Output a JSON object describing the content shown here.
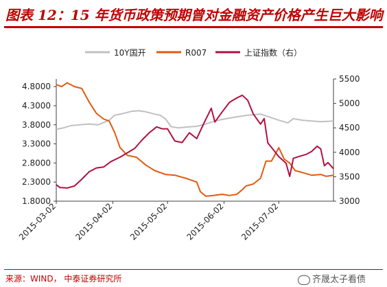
{
  "title": "图表 12：15 年货币政策预期曾对金融资产价格产生巨大影响",
  "source": "来源：WIND， 中泰证券研究所",
  "watermark": "齐晟太子看债",
  "colors": {
    "title": "#c00000",
    "s10y": "#c0c0c0",
    "r007": "#e05a10",
    "sh": "#b01040",
    "axis": "#404040"
  },
  "chart_data": {
    "type": "line",
    "title": "",
    "xlabel": "",
    "ylabel": "",
    "x_ticks": [
      "2015-03-02",
      "2015-04-02",
      "2015-05-02",
      "2015-06-02",
      "2015-07-02"
    ],
    "x_range": [
      "2015-03-02",
      "2015-08-01"
    ],
    "y_left": {
      "range": [
        1.8,
        5.0
      ],
      "ticks": [
        "1.8000",
        "2.3000",
        "2.8000",
        "3.3000",
        "3.8000",
        "4.3000",
        "4.8000"
      ]
    },
    "y_right": {
      "range": [
        3000,
        5500
      ],
      "ticks": [
        "3000",
        "3500",
        "4000",
        "4500",
        "5000",
        "5500"
      ]
    },
    "legend": "top",
    "series": [
      {
        "name": "10Y国开",
        "axis": "left",
        "points": [
          [
            "2015-03-02",
            3.68
          ],
          [
            "2015-03-06",
            3.72
          ],
          [
            "2015-03-10",
            3.78
          ],
          [
            "2015-03-15",
            3.8
          ],
          [
            "2015-03-20",
            3.82
          ],
          [
            "2015-03-25",
            3.8
          ],
          [
            "2015-03-31",
            3.92
          ],
          [
            "2015-04-03",
            4.05
          ],
          [
            "2015-04-08",
            4.1
          ],
          [
            "2015-04-12",
            4.15
          ],
          [
            "2015-04-16",
            4.17
          ],
          [
            "2015-04-20",
            4.14
          ],
          [
            "2015-04-25",
            4.08
          ],
          [
            "2015-04-28",
            4.05
          ],
          [
            "2015-05-01",
            3.95
          ],
          [
            "2015-05-04",
            3.75
          ],
          [
            "2015-05-08",
            3.72
          ],
          [
            "2015-05-12",
            3.74
          ],
          [
            "2015-05-18",
            3.76
          ],
          [
            "2015-05-23",
            3.82
          ],
          [
            "2015-05-28",
            3.9
          ],
          [
            "2015-06-02",
            3.95
          ],
          [
            "2015-06-08",
            4.0
          ],
          [
            "2015-06-15",
            4.05
          ],
          [
            "2015-06-22",
            4.08
          ],
          [
            "2015-06-27",
            4.0
          ],
          [
            "2015-07-02",
            3.92
          ],
          [
            "2015-07-07",
            3.85
          ],
          [
            "2015-07-10",
            3.96
          ],
          [
            "2015-07-15",
            3.92
          ],
          [
            "2015-07-20",
            3.9
          ],
          [
            "2015-07-25",
            3.88
          ],
          [
            "2015-08-01",
            3.9
          ]
        ]
      },
      {
        "name": "R007",
        "axis": "left",
        "points": [
          [
            "2015-03-02",
            4.85
          ],
          [
            "2015-03-05",
            4.8
          ],
          [
            "2015-03-08",
            4.9
          ],
          [
            "2015-03-12",
            4.8
          ],
          [
            "2015-03-16",
            4.75
          ],
          [
            "2015-03-20",
            4.4
          ],
          [
            "2015-03-24",
            4.1
          ],
          [
            "2015-03-28",
            3.95
          ],
          [
            "2015-03-31",
            3.9
          ],
          [
            "2015-04-03",
            3.6
          ],
          [
            "2015-04-06",
            3.2
          ],
          [
            "2015-04-10",
            3.0
          ],
          [
            "2015-04-15",
            2.95
          ],
          [
            "2015-04-20",
            2.75
          ],
          [
            "2015-04-25",
            2.6
          ],
          [
            "2015-05-01",
            2.5
          ],
          [
            "2015-05-06",
            2.48
          ],
          [
            "2015-05-12",
            2.4
          ],
          [
            "2015-05-18",
            2.3
          ],
          [
            "2015-05-20",
            2.05
          ],
          [
            "2015-05-23",
            1.93
          ],
          [
            "2015-05-27",
            1.95
          ],
          [
            "2015-06-01",
            1.98
          ],
          [
            "2015-06-05",
            1.95
          ],
          [
            "2015-06-09",
            1.98
          ],
          [
            "2015-06-12",
            2.1
          ],
          [
            "2015-06-14",
            2.2
          ],
          [
            "2015-06-18",
            2.25
          ],
          [
            "2015-06-22",
            2.4
          ],
          [
            "2015-06-25",
            2.85
          ],
          [
            "2015-06-28",
            2.85
          ],
          [
            "2015-07-02",
            3.2
          ],
          [
            "2015-07-05",
            2.9
          ],
          [
            "2015-07-08",
            2.8
          ],
          [
            "2015-07-11",
            2.6
          ],
          [
            "2015-07-15",
            2.55
          ],
          [
            "2015-07-20",
            2.48
          ],
          [
            "2015-07-25",
            2.5
          ],
          [
            "2015-07-28",
            2.45
          ],
          [
            "2015-08-01",
            2.48
          ]
        ]
      },
      {
        "name": "上证指数（右）",
        "axis": "right",
        "points": [
          [
            "2015-03-02",
            3336
          ],
          [
            "2015-03-04",
            3280
          ],
          [
            "2015-03-08",
            3270
          ],
          [
            "2015-03-12",
            3310
          ],
          [
            "2015-03-16",
            3450
          ],
          [
            "2015-03-20",
            3600
          ],
          [
            "2015-03-24",
            3680
          ],
          [
            "2015-03-28",
            3700
          ],
          [
            "2015-04-01",
            3810
          ],
          [
            "2015-04-06",
            3900
          ],
          [
            "2015-04-10",
            3990
          ],
          [
            "2015-04-14",
            4080
          ],
          [
            "2015-04-18",
            4250
          ],
          [
            "2015-04-22",
            4400
          ],
          [
            "2015-04-26",
            4520
          ],
          [
            "2015-04-29",
            4480
          ],
          [
            "2015-05-02",
            4480
          ],
          [
            "2015-05-06",
            4230
          ],
          [
            "2015-05-10",
            4200
          ],
          [
            "2015-05-14",
            4400
          ],
          [
            "2015-05-18",
            4280
          ],
          [
            "2015-05-22",
            4600
          ],
          [
            "2015-05-26",
            4900
          ],
          [
            "2015-05-28",
            4620
          ],
          [
            "2015-06-01",
            4828
          ],
          [
            "2015-06-05",
            5023
          ],
          [
            "2015-06-09",
            5113
          ],
          [
            "2015-06-12",
            5166
          ],
          [
            "2015-06-15",
            5062
          ],
          [
            "2015-06-18",
            4785
          ],
          [
            "2015-06-22",
            4576
          ],
          [
            "2015-06-24",
            4690
          ],
          [
            "2015-06-26",
            4192
          ],
          [
            "2015-06-29",
            4053
          ],
          [
            "2015-07-02",
            3912
          ],
          [
            "2015-07-06",
            3775
          ],
          [
            "2015-07-08",
            3507
          ],
          [
            "2015-07-10",
            3877
          ],
          [
            "2015-07-14",
            3924
          ],
          [
            "2015-07-17",
            3957
          ],
          [
            "2015-07-20",
            4017
          ],
          [
            "2015-07-23",
            4124
          ],
          [
            "2015-07-25",
            4070
          ],
          [
            "2015-07-27",
            3725
          ],
          [
            "2015-07-29",
            3789
          ],
          [
            "2015-08-01",
            3664
          ]
        ]
      }
    ]
  }
}
